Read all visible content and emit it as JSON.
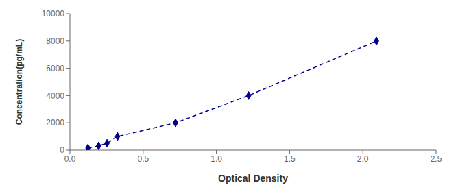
{
  "chart_data": {
    "type": "line",
    "x": [
      0.123,
      0.196,
      0.253,
      0.325,
      0.721,
      1.22,
      2.093
    ],
    "values": [
      156.25,
      312.5,
      500,
      1000,
      2000,
      4000,
      8000
    ],
    "color": "#00008B",
    "marker": "diamond",
    "line_style": "dashed",
    "xlabel": "Optical Density",
    "ylabel": "Concentration(pg/mL)",
    "xlim": [
      0,
      2.5
    ],
    "ylim": [
      0,
      10000
    ],
    "xticks": [
      {
        "value": 0,
        "label": "0.0"
      },
      0.5,
      {
        "value": 1,
        "label": "1.0"
      },
      1.5,
      {
        "value": 2,
        "label": "2.0"
      },
      2.5
    ],
    "yticks": [
      0,
      2000,
      4000,
      6000,
      8000,
      10000
    ],
    "grid": false
  }
}
